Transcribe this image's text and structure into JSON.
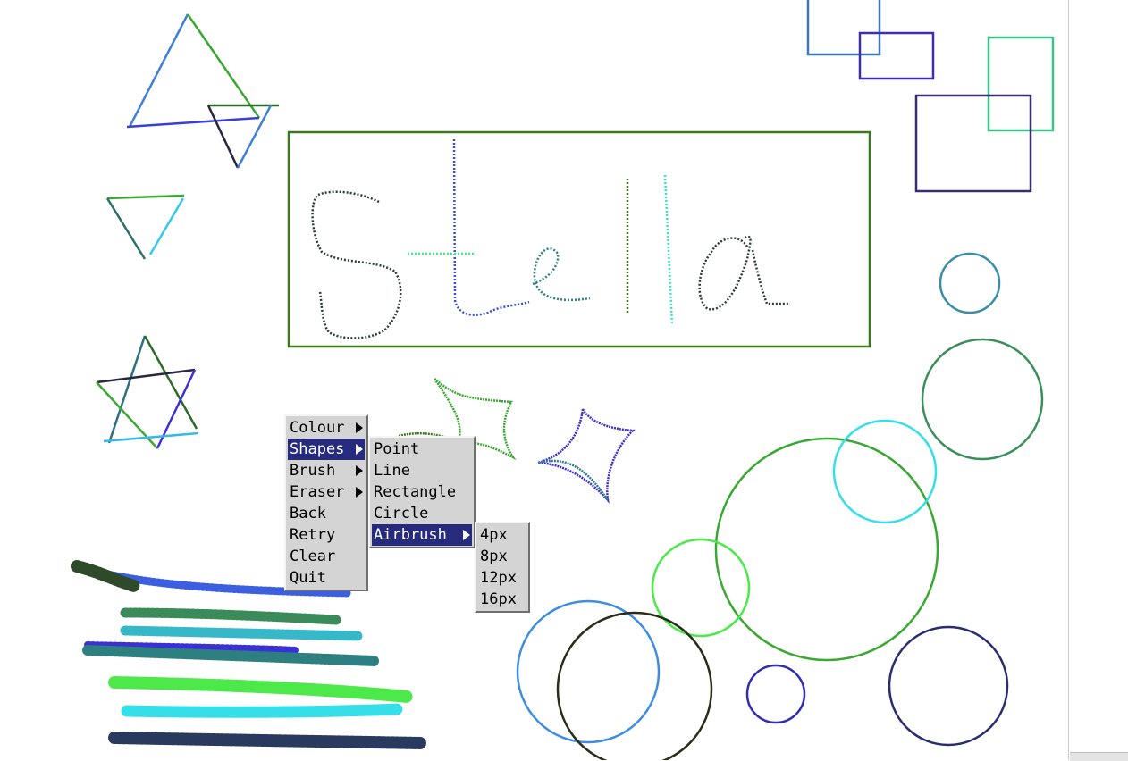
{
  "canvas": {
    "handwriting": "Stella",
    "colors": {
      "box_green": "#3d7a1e",
      "blue": "#3b4fd6",
      "teal": "#2e7f7f",
      "dark": "#2f3a3a",
      "navy": "#2a2d6e",
      "cyan": "#36dfe8",
      "green": "#3aa832",
      "lime": "#4de84a",
      "sky": "#3f8de0"
    }
  },
  "menus": {
    "main": {
      "items": [
        {
          "label": "Colour",
          "submenu": true,
          "selected": false
        },
        {
          "label": "Shapes",
          "submenu": true,
          "selected": true
        },
        {
          "label": "Brush",
          "submenu": true,
          "selected": false
        },
        {
          "label": "Eraser",
          "submenu": true,
          "selected": false
        },
        {
          "label": "Back",
          "submenu": false,
          "selected": false
        },
        {
          "label": "Retry",
          "submenu": false,
          "selected": false
        },
        {
          "label": "Clear",
          "submenu": false,
          "selected": false
        },
        {
          "label": "Quit",
          "submenu": false,
          "selected": false
        }
      ]
    },
    "shapes": {
      "items": [
        {
          "label": "Point",
          "submenu": false,
          "selected": false
        },
        {
          "label": "Line",
          "submenu": false,
          "selected": false
        },
        {
          "label": "Rectangle",
          "submenu": false,
          "selected": false
        },
        {
          "label": "Circle",
          "submenu": false,
          "selected": false
        },
        {
          "label": "Airbrush",
          "submenu": true,
          "selected": true
        }
      ]
    },
    "airbrush": {
      "items": [
        {
          "label": "4px",
          "submenu": false,
          "selected": false
        },
        {
          "label": "8px",
          "submenu": false,
          "selected": false
        },
        {
          "label": "12px",
          "submenu": false,
          "selected": false
        },
        {
          "label": "16px",
          "submenu": false,
          "selected": false
        }
      ]
    }
  }
}
